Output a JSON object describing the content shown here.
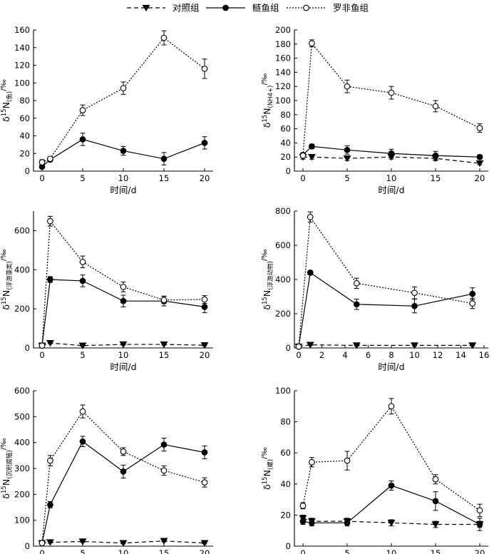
{
  "legend": [
    {
      "key": "control",
      "label": "对照组"
    },
    {
      "key": "silver",
      "label": "鲢鱼组"
    },
    {
      "key": "tilapia",
      "label": "罗非鱼组"
    }
  ],
  "styles": {
    "control": {
      "color": "#000000",
      "dash": "6,4",
      "marker": "triangle-down",
      "fill": "#000000"
    },
    "silver": {
      "color": "#000000",
      "dash": "",
      "marker": "circle",
      "fill": "#000000"
    },
    "tilapia": {
      "color": "#000000",
      "dash": "2,2",
      "marker": "circle",
      "fill": "#ffffff"
    }
  },
  "chart_data": [
    {
      "type": "line",
      "ylabel_base": "δ15N",
      "ylabel_sub": "(鱼)",
      "ylabel_unit": "/‰",
      "xlabel": "时间/d",
      "xlim": [
        0,
        20
      ],
      "xticks": [
        0,
        5,
        10,
        15,
        20
      ],
      "ylim": [
        0,
        160
      ],
      "yticks": [
        0,
        20,
        40,
        60,
        80,
        100,
        120,
        140,
        160
      ],
      "series": [
        {
          "key": "silver",
          "name": "鲢鱼组",
          "x": [
            0,
            1,
            5,
            10,
            15,
            20
          ],
          "y": [
            5,
            13,
            36,
            23,
            14,
            32
          ],
          "err": [
            2,
            2,
            7,
            5,
            7,
            7
          ]
        },
        {
          "key": "tilapia",
          "name": "罗非鱼组",
          "x": [
            0,
            1,
            5,
            10,
            15,
            20
          ],
          "y": [
            10,
            14,
            69,
            94,
            151,
            116
          ],
          "err": [
            3,
            2,
            6,
            7,
            8,
            11
          ]
        }
      ]
    },
    {
      "type": "line",
      "ylabel_base": "δ15N",
      "ylabel_sub": "(NH4+)",
      "ylabel_unit": "/‰",
      "xlabel": "时间/d",
      "xlim": [
        0,
        20
      ],
      "xticks": [
        0,
        5,
        10,
        15,
        20
      ],
      "ylim": [
        0,
        200
      ],
      "yticks": [
        0,
        20,
        40,
        60,
        80,
        100,
        120,
        140,
        160,
        180,
        200
      ],
      "series": [
        {
          "key": "control",
          "name": "对照组",
          "x": [
            0,
            1,
            5,
            10,
            15,
            20
          ],
          "y": [
            20,
            20,
            18,
            20,
            18,
            11
          ],
          "err": [
            3,
            3,
            3,
            3,
            3,
            2
          ]
        },
        {
          "key": "silver",
          "name": "鲢鱼组",
          "x": [
            0,
            1,
            5,
            10,
            15,
            20
          ],
          "y": [
            23,
            35,
            30,
            25,
            22,
            20
          ],
          "err": [
            3,
            3,
            6,
            6,
            6,
            3
          ]
        },
        {
          "key": "tilapia",
          "name": "罗非鱼组",
          "x": [
            0,
            1,
            5,
            10,
            15,
            20
          ],
          "y": [
            22,
            181,
            120,
            111,
            92,
            61
          ],
          "err": [
            3,
            5,
            9,
            9,
            8,
            6
          ]
        }
      ]
    },
    {
      "type": "line",
      "ylabel_base": "δ15N",
      "ylabel_sub": "(浮游藻类)",
      "ylabel_unit": "/‰",
      "xlabel": "时间/d",
      "xlim": [
        0,
        20
      ],
      "xticks": [
        0,
        5,
        10,
        15,
        20
      ],
      "ylim": [
        0,
        700
      ],
      "yticks": [
        0,
        200,
        400,
        600
      ],
      "series": [
        {
          "key": "control",
          "name": "对照组",
          "x": [
            0,
            1,
            5,
            10,
            15,
            20
          ],
          "y": [
            12,
            25,
            12,
            18,
            18,
            14
          ],
          "err": [
            3,
            3,
            3,
            3,
            3,
            3
          ]
        },
        {
          "key": "silver",
          "name": "鲢鱼组",
          "x": [
            0,
            1,
            5,
            10,
            15,
            20
          ],
          "y": [
            12,
            350,
            343,
            240,
            240,
            210
          ],
          "err": [
            3,
            15,
            30,
            30,
            25,
            30
          ]
        },
        {
          "key": "tilapia",
          "name": "罗非鱼组",
          "x": [
            0,
            1,
            5,
            10,
            15,
            20
          ],
          "y": [
            12,
            648,
            440,
            312,
            245,
            248
          ],
          "err": [
            3,
            25,
            30,
            25,
            18,
            20
          ]
        }
      ]
    },
    {
      "type": "line",
      "ylabel_base": "δ15N",
      "ylabel_sub": "(浮游动物)",
      "ylabel_unit": "/‰",
      "xlabel": "时间/d",
      "xlim": [
        0,
        16
      ],
      "xticks": [
        0,
        2,
        4,
        6,
        8,
        10,
        12,
        14,
        16
      ],
      "ylim": [
        0,
        800
      ],
      "yticks": [
        0,
        200,
        400,
        600,
        800
      ],
      "series": [
        {
          "key": "control",
          "name": "对照组",
          "x": [
            0,
            1,
            5,
            10,
            15
          ],
          "y": [
            8,
            18,
            15,
            15,
            15
          ],
          "err": [
            3,
            3,
            3,
            3,
            3
          ]
        },
        {
          "key": "silver",
          "name": "鲢鱼组",
          "x": [
            0,
            1,
            5,
            10,
            15
          ],
          "y": [
            8,
            440,
            255,
            245,
            316
          ],
          "err": [
            3,
            12,
            30,
            40,
            35
          ]
        },
        {
          "key": "tilapia",
          "name": "罗非鱼组",
          "x": [
            0,
            1,
            5,
            10,
            15
          ],
          "y": [
            8,
            765,
            378,
            322,
            260
          ],
          "err": [
            3,
            30,
            30,
            35,
            30
          ]
        }
      ]
    },
    {
      "type": "line",
      "ylabel_base": "δ15N",
      "ylabel_sub": "(沉积腐殖)",
      "ylabel_unit": "/‰",
      "xlabel": "时间/d",
      "xlim": [
        0,
        20
      ],
      "xticks": [
        0,
        5,
        10,
        15,
        20
      ],
      "ylim": [
        0,
        600
      ],
      "yticks": [
        0,
        100,
        200,
        300,
        400,
        500,
        600
      ],
      "series": [
        {
          "key": "control",
          "name": "对照组",
          "x": [
            0,
            1,
            5,
            10,
            15,
            20
          ],
          "y": [
            12,
            15,
            18,
            12,
            20,
            12
          ],
          "err": [
            3,
            3,
            3,
            3,
            3,
            3
          ]
        },
        {
          "key": "silver",
          "name": "鲢鱼组",
          "x": [
            0,
            1,
            5,
            10,
            15,
            20
          ],
          "y": [
            12,
            160,
            404,
            288,
            392,
            362
          ],
          "err": [
            3,
            12,
            20,
            25,
            25,
            25
          ]
        },
        {
          "key": "tilapia",
          "name": "罗非鱼组",
          "x": [
            0,
            1,
            5,
            10,
            15,
            20
          ],
          "y": [
            12,
            330,
            520,
            365,
            292,
            246
          ],
          "err": [
            3,
            20,
            25,
            15,
            18,
            18
          ]
        }
      ]
    },
    {
      "type": "line",
      "ylabel_base": "δ15N",
      "ylabel_sub": "(螺)",
      "ylabel_unit": "/‰",
      "xlabel": "时间/d",
      "xlim": [
        0,
        20
      ],
      "xticks": [
        0,
        5,
        10,
        15,
        20
      ],
      "ylim": [
        0,
        100
      ],
      "yticks": [
        0,
        20,
        40,
        60,
        80,
        100
      ],
      "series": [
        {
          "key": "control",
          "name": "对照组",
          "x": [
            0,
            1,
            5,
            10,
            15,
            20
          ],
          "y": [
            18,
            16,
            16,
            15,
            14,
            14
          ],
          "err": [
            2,
            2,
            2,
            2,
            2,
            2
          ]
        },
        {
          "key": "silver",
          "name": "鲢鱼组",
          "x": [
            0,
            1,
            5,
            10,
            15,
            20
          ],
          "y": [
            16,
            15,
            15,
            39,
            29,
            14
          ],
          "err": [
            2,
            2,
            2,
            3,
            6,
            4
          ]
        },
        {
          "key": "tilapia",
          "name": "罗非鱼组",
          "x": [
            0,
            1,
            5,
            10,
            15,
            20
          ],
          "y": [
            26,
            54,
            55,
            90,
            43,
            23
          ],
          "err": [
            2,
            3,
            6,
            5,
            3,
            4
          ]
        }
      ]
    }
  ]
}
